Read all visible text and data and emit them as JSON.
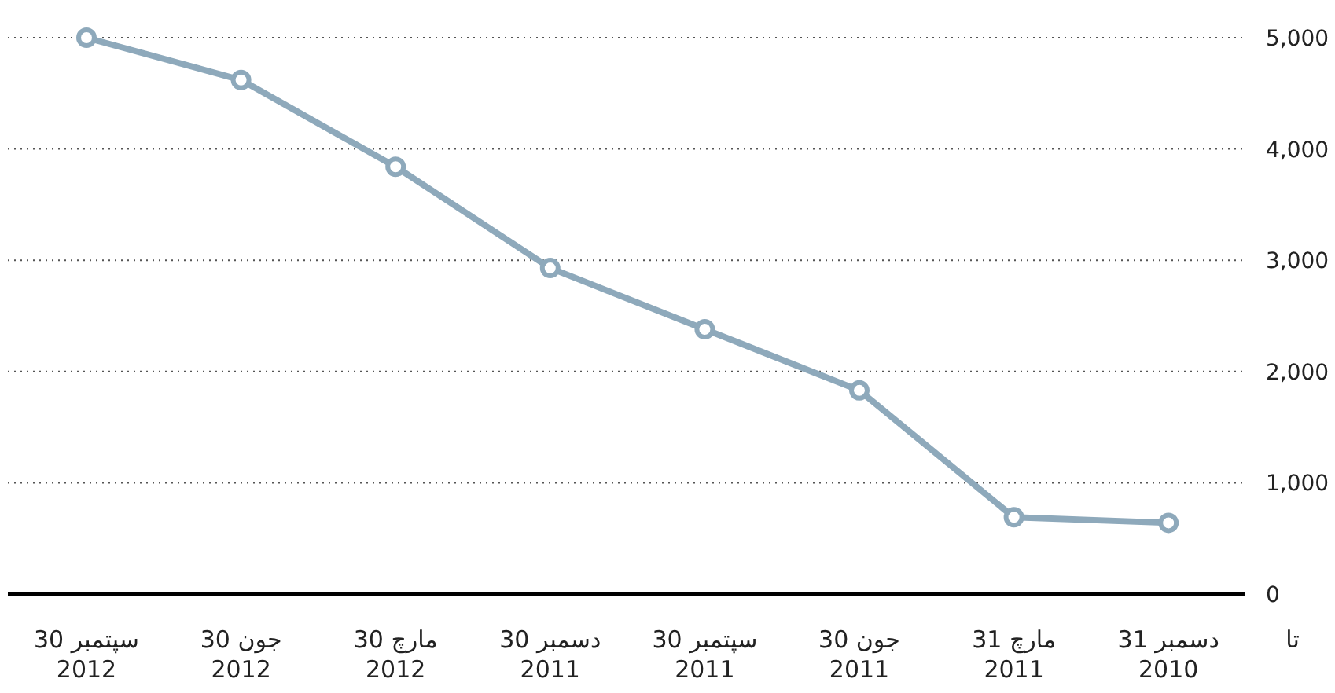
{
  "chart_data": {
    "type": "line",
    "categories": [
      "سپتمبر 30\n2012",
      "جون 30\n2012",
      "مارچ 30\n2012",
      "دسمبر 30\n2011",
      "سپتمبر 30\n2011",
      "جون 30\n2011",
      "مارچ 31\n2011",
      "دسمبر 31\n2010"
    ],
    "series": [
      {
        "color": "#8ea9bb",
        "values": [
          5000,
          4620,
          3840,
          2930,
          2380,
          1830,
          690,
          640
        ]
      }
    ],
    "ylim": [
      0,
      5000
    ],
    "yticks": [
      0,
      {
        "value": 1000,
        "label": "1,000"
      },
      {
        "value": 2000,
        "label": "2,000"
      },
      {
        "value": 3000,
        "label": "3,000"
      },
      {
        "value": 4000,
        "label": "4,000"
      },
      {
        "value": 5000,
        "label": "5,000"
      }
    ],
    "grid": "y",
    "marker": "circle",
    "xlabel": "تا"
  }
}
